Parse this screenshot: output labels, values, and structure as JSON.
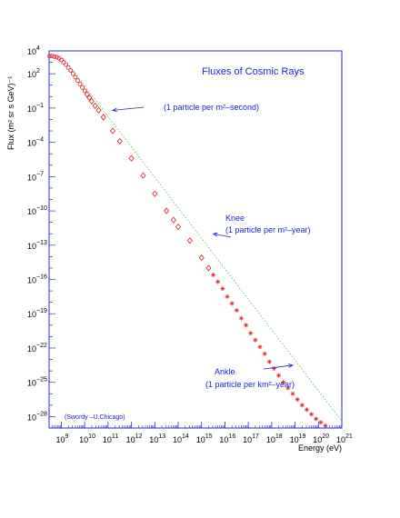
{
  "chart_data": {
    "type": "scatter",
    "title": "Fluxes of Cosmic Rays",
    "xlabel": "Energy (eV)",
    "ylabel": "Flux (m² sr s GeV)⁻¹",
    "x_scale": "log",
    "y_scale": "log",
    "xlim": [
      300000000,
      1e+21
    ],
    "ylim": [
      1e-29,
      10000
    ],
    "x_tick_labels": [
      {
        "base": "10",
        "exp": "9"
      },
      {
        "base": "10",
        "exp": "10"
      },
      {
        "base": "10",
        "exp": "11"
      },
      {
        "base": "10",
        "exp": "12"
      },
      {
        "base": "10",
        "exp": "13"
      },
      {
        "base": "10",
        "exp": "14"
      },
      {
        "base": "10",
        "exp": "15"
      },
      {
        "base": "10",
        "exp": "16"
      },
      {
        "base": "10",
        "exp": "17"
      },
      {
        "base": "10",
        "exp": "18"
      },
      {
        "base": "10",
        "exp": "19"
      },
      {
        "base": "10",
        "exp": "20"
      },
      {
        "base": "10",
        "exp": "21"
      }
    ],
    "y_tick_labels": [
      {
        "base": "10",
        "exp": "4"
      },
      {
        "base": "10",
        "exp": "2"
      },
      {
        "base": "10",
        "exp": "−1"
      },
      {
        "base": "10",
        "exp": "−4"
      },
      {
        "base": "10",
        "exp": "−7"
      },
      {
        "base": "10",
        "exp": "−10"
      },
      {
        "base": "10",
        "exp": "−13"
      },
      {
        "base": "10",
        "exp": "−16"
      },
      {
        "base": "10",
        "exp": "−19"
      },
      {
        "base": "10",
        "exp": "−22"
      },
      {
        "base": "10",
        "exp": "−25"
      },
      {
        "base": "10",
        "exp": "−28"
      }
    ],
    "y_tick_values": [
      4,
      2,
      -1,
      -4,
      -7,
      -10,
      -13,
      -16,
      -19,
      -22,
      -25,
      -28
    ],
    "x_tick_values": [
      9,
      10,
      11,
      12,
      13,
      14,
      15,
      16,
      17,
      18,
      19,
      20,
      21
    ],
    "annotations": [
      {
        "name": "one-per-m2-second",
        "line1": "(1 particle per m²–second)",
        "line2": "",
        "target_log_energy": 11.2,
        "target_log_flux": -1.2
      },
      {
        "name": "knee",
        "line1": "Knee",
        "line2": "(1 particle per m²–year)",
        "target_log_energy": 15.5,
        "target_log_flux": -12.0
      },
      {
        "name": "ankle",
        "line1": "Ankle",
        "line2": "(1 particle per km²–year)",
        "target_log_energy": 18.9,
        "target_log_flux": -23.5
      }
    ],
    "credit": "(Swordy –U.Chicago)",
    "reference_line": {
      "name": "E^-3 power law",
      "points": [
        [
          9.0,
          3.6
        ],
        [
          21.0,
          -28.4
        ]
      ]
    },
    "series": [
      {
        "marker": "circle",
        "points": [
          [
            8.5,
            3.55
          ],
          [
            8.6,
            3.55
          ],
          [
            8.7,
            3.5
          ],
          [
            8.8,
            3.45
          ],
          [
            8.9,
            3.35
          ],
          [
            9.0,
            3.2
          ],
          [
            9.1,
            3.0
          ],
          [
            9.2,
            2.8
          ],
          [
            9.3,
            2.55
          ],
          [
            9.4,
            2.3
          ],
          [
            9.5,
            2.0
          ],
          [
            9.6,
            1.7
          ],
          [
            9.7,
            1.4
          ],
          [
            9.8,
            1.1
          ],
          [
            9.9,
            0.8
          ],
          [
            10.0,
            0.5
          ]
        ]
      },
      {
        "marker": "diamond",
        "points": [
          [
            10.1,
            0.2
          ],
          [
            10.2,
            -0.1
          ],
          [
            10.3,
            -0.4
          ],
          [
            10.45,
            -0.8
          ],
          [
            10.6,
            -1.2
          ],
          [
            10.8,
            -1.8
          ],
          [
            11.2,
            -3.0
          ],
          [
            11.5,
            -3.9
          ],
          [
            12.0,
            -5.4
          ],
          [
            12.5,
            -6.9
          ],
          [
            13.0,
            -8.5
          ],
          [
            13.5,
            -10.0
          ],
          [
            13.8,
            -10.8
          ],
          [
            14.0,
            -11.4
          ],
          [
            14.5,
            -12.6
          ],
          [
            15.0,
            -14.1
          ],
          [
            15.3,
            -15.0
          ]
        ]
      },
      {
        "marker": "star",
        "points": [
          [
            15.5,
            -15.6
          ],
          [
            15.7,
            -16.2
          ],
          [
            15.9,
            -16.8
          ],
          [
            16.1,
            -17.5
          ],
          [
            16.3,
            -18.1
          ],
          [
            16.5,
            -18.7
          ],
          [
            16.7,
            -19.4
          ],
          [
            16.9,
            -20.0
          ],
          [
            17.1,
            -20.7
          ],
          [
            17.3,
            -21.3
          ],
          [
            17.5,
            -21.9
          ],
          [
            17.7,
            -22.5
          ],
          [
            17.9,
            -23.2
          ],
          [
            18.1,
            -23.8
          ],
          [
            18.3,
            -24.4
          ],
          [
            18.5,
            -25.0
          ],
          [
            18.7,
            -25.5
          ],
          [
            18.9,
            -26.0
          ],
          [
            19.1,
            -26.5
          ],
          [
            19.3,
            -27.0
          ],
          [
            19.5,
            -27.4
          ],
          [
            19.7,
            -27.8
          ],
          [
            19.9,
            -28.2
          ],
          [
            20.1,
            -28.5
          ],
          [
            20.3,
            -28.8
          ]
        ]
      }
    ]
  }
}
